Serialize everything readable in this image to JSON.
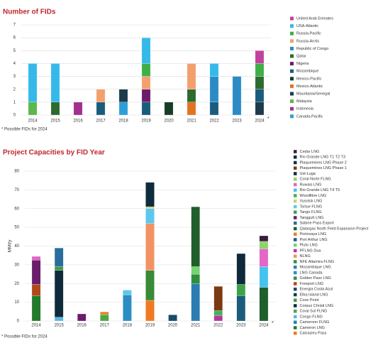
{
  "chart_data": [
    {
      "type": "stacked-bar",
      "title": "Number of FIDs",
      "note": "* Possible FIDs for 2024",
      "note_marker": "*",
      "categories": [
        "2014",
        "2015",
        "2016",
        "2017",
        "2018",
        "2019",
        "2020",
        "2021",
        "2022",
        "2023",
        "2024"
      ],
      "ylim": [
        0,
        7
      ],
      "yticks": [
        0,
        1,
        2,
        3,
        4,
        5,
        6,
        7
      ],
      "grid": true,
      "series": [
        {
          "name": "United Arab Emirates",
          "color": "#c2409e",
          "values": [
            0,
            0,
            0,
            0,
            0,
            0,
            0,
            0,
            0,
            0,
            1
          ]
        },
        {
          "name": "USA-Atlantic",
          "color": "#35b9e9",
          "values": [
            3,
            3,
            0,
            0,
            0,
            2,
            0,
            0,
            1,
            0,
            0
          ]
        },
        {
          "name": "Russia-Pacific",
          "color": "#3fae49",
          "values": [
            0,
            0,
            0,
            0,
            0,
            1,
            0,
            0,
            0,
            0,
            1
          ]
        },
        {
          "name": "Russia-Arctic",
          "color": "#f3a06e",
          "values": [
            0,
            0,
            0,
            1,
            0,
            1,
            0,
            2,
            0,
            0,
            0
          ]
        },
        {
          "name": "Republic of Congo",
          "color": "#2b8cc4",
          "values": [
            0,
            0,
            0,
            0,
            0,
            0,
            0,
            0,
            2,
            3,
            0
          ]
        },
        {
          "name": "Qatar",
          "color": "#2d6a2f",
          "values": [
            0,
            1,
            0,
            0,
            0,
            0,
            0,
            1,
            0,
            0,
            1
          ]
        },
        {
          "name": "Nigeria",
          "color": "#6b1c6b",
          "values": [
            0,
            0,
            0,
            0,
            0,
            1,
            0,
            0,
            0,
            0,
            0
          ]
        },
        {
          "name": "Mozambique",
          "color": "#1a5c7c",
          "values": [
            0,
            0,
            0,
            1,
            0,
            1,
            0,
            0,
            1,
            0,
            1
          ]
        },
        {
          "name": "Mexico-Pacific",
          "color": "#173d24",
          "values": [
            0,
            0,
            0,
            0,
            0,
            0,
            1,
            0,
            0,
            0,
            0
          ]
        },
        {
          "name": "Mexico-Atlantic",
          "color": "#e2741f",
          "values": [
            0,
            0,
            0,
            0,
            0,
            0,
            0,
            1,
            0,
            0,
            0
          ]
        },
        {
          "name": "Mauritania/Senegal",
          "color": "#1c3a4c",
          "values": [
            0,
            0,
            0,
            0,
            1,
            0,
            0,
            0,
            0,
            0,
            1
          ]
        },
        {
          "name": "Malaysia",
          "color": "#5cb84a",
          "values": [
            1,
            0,
            0,
            0,
            0,
            0,
            0,
            0,
            0,
            0,
            0
          ]
        },
        {
          "name": "Indonesia",
          "color": "#a2308f",
          "values": [
            0,
            0,
            1,
            0,
            0,
            0,
            0,
            0,
            0,
            0,
            0
          ]
        },
        {
          "name": "Canada-Pacific",
          "color": "#2e9fd6",
          "values": [
            0,
            0,
            0,
            0,
            1,
            0,
            0,
            0,
            0,
            0,
            0
          ]
        }
      ]
    },
    {
      "type": "stacked-bar",
      "title": "Project Capacities by FID Year",
      "note": "* Possible FIDs for 2024",
      "note_marker": "*",
      "y_label": "MMt/y",
      "categories": [
        "2014",
        "2015",
        "2016",
        "2017",
        "2018",
        "2019",
        "2020",
        "2021",
        "2022",
        "2023",
        "2024"
      ],
      "ylim": [
        0,
        80
      ],
      "yticks": [
        0,
        10,
        20,
        30,
        40,
        50,
        60,
        70,
        80
      ],
      "grid": true,
      "series": [
        {
          "name": "Cedar LNG",
          "color": "#3b1a3b",
          "values": [
            0,
            0,
            0,
            0,
            0,
            0,
            0,
            0,
            0,
            0,
            3
          ]
        },
        {
          "name": "Rio Grande LNG T1 T2 T3",
          "color": "#10293a",
          "values": [
            0,
            0,
            0,
            0,
            0,
            0,
            0,
            0,
            0,
            16.5,
            0
          ]
        },
        {
          "name": "Plaquemines LNG Phase 2",
          "color": "#1d2f3a",
          "values": [
            0,
            0,
            0,
            0,
            0,
            0,
            0,
            0,
            0,
            0,
            0
          ]
        },
        {
          "name": "Plaquemines LNG Phase 1",
          "color": "#7a3a12",
          "values": [
            0,
            0,
            0,
            0,
            0,
            0,
            0,
            0,
            13,
            0,
            0
          ]
        },
        {
          "name": "Ust-Luga",
          "color": "#0f2c3e",
          "values": [
            0,
            0,
            0,
            0,
            0,
            13,
            0,
            0,
            0,
            0,
            0
          ]
        },
        {
          "name": "Coral Norte FLNG",
          "color": "#8fd36c",
          "values": [
            0,
            0,
            0,
            0,
            0,
            0,
            0,
            0,
            0,
            0,
            4
          ]
        },
        {
          "name": "Ruwais LNG",
          "color": "#e466c6",
          "values": [
            2,
            0,
            0,
            0,
            0,
            0,
            0,
            0,
            0,
            0,
            9.5
          ]
        },
        {
          "name": "Rio Grande LNG T4 T5",
          "color": "#45c3f0",
          "values": [
            0,
            0,
            0,
            0,
            0,
            0,
            0,
            0,
            0,
            0,
            11
          ]
        },
        {
          "name": "Woodfibre LNG",
          "color": "#40b455",
          "values": [
            0,
            0,
            0,
            0,
            0,
            0,
            0,
            0,
            2.5,
            0,
            0
          ]
        },
        {
          "name": "Vysotsk LNG",
          "color": "#cfd36a",
          "values": [
            0,
            0,
            0,
            0,
            0,
            1,
            0,
            0,
            0,
            0,
            0
          ]
        },
        {
          "name": "Tortue FLNG",
          "color": "#5fc7ef",
          "values": [
            0,
            0,
            0,
            0,
            2.5,
            8,
            0,
            0,
            0,
            0,
            0
          ]
        },
        {
          "name": "Tango FLNG",
          "color": "#3da445",
          "values": [
            0,
            0,
            0,
            0,
            0,
            0,
            0,
            0,
            0,
            6,
            0
          ]
        },
        {
          "name": "Tangguh LNG",
          "color": "#6b1c6b",
          "values": [
            13,
            0,
            3.8,
            0,
            0,
            0,
            0,
            0,
            0,
            0,
            0
          ]
        },
        {
          "name": "Sabine Pass Export",
          "color": "#2a6d9c",
          "values": [
            0,
            10,
            0,
            0,
            0,
            0,
            0,
            0,
            0,
            0,
            0
          ]
        },
        {
          "name": "Qatargas North Field Expansion Project",
          "color": "#205e2c",
          "values": [
            0,
            0,
            0,
            0,
            0,
            0,
            0,
            32,
            0,
            0,
            18
          ]
        },
        {
          "name": "Portovaya LNG",
          "color": "#e5822f",
          "values": [
            0,
            0,
            0,
            1.5,
            0,
            0,
            0,
            0,
            0,
            0,
            0
          ]
        },
        {
          "name": "Port Arthur LNG",
          "color": "#1c5c7b",
          "values": [
            0,
            0,
            0,
            0,
            0,
            0,
            0,
            0,
            0,
            13.5,
            0
          ]
        },
        {
          "name": "Pluto LNG",
          "color": "#74d46e",
          "values": [
            0,
            0,
            0,
            0,
            0,
            0,
            0,
            4,
            0,
            0,
            0
          ]
        },
        {
          "name": "PFLNG Dua",
          "color": "#b2389f",
          "values": [
            0,
            0,
            0,
            0,
            0,
            0,
            0,
            0,
            3,
            0,
            0
          ]
        },
        {
          "name": "NLNG",
          "color": "#f29263",
          "values": [
            0,
            0,
            0,
            0,
            0,
            25,
            0,
            0,
            0,
            0,
            0
          ]
        },
        {
          "name": "NFE Altamira FLNG",
          "color": "#2f8f3d",
          "values": [
            0,
            0,
            0,
            0,
            0,
            0,
            0,
            5,
            0,
            0,
            0
          ]
        },
        {
          "name": "Mozambique LNG",
          "color": "#2c7cb2",
          "values": [
            0,
            0,
            0,
            0,
            0,
            0,
            0,
            20,
            0,
            0,
            0
          ]
        },
        {
          "name": "LNG Canada",
          "color": "#2b8ec3",
          "values": [
            0,
            0,
            0,
            0,
            14,
            0,
            0,
            0,
            0,
            0,
            0
          ]
        },
        {
          "name": "Golden Pass LNG",
          "color": "#3a8a38",
          "values": [
            0,
            0,
            0,
            0,
            0,
            16,
            0,
            0,
            0,
            0,
            0
          ]
        },
        {
          "name": "Freeport LNG",
          "color": "#b04a18",
          "values": [
            6,
            0,
            0,
            0,
            0,
            0,
            0,
            0,
            0,
            0,
            0
          ]
        },
        {
          "name": "Energia Costa Azul",
          "color": "#1b4b6b",
          "values": [
            0,
            0,
            0,
            0,
            0,
            0,
            3.3,
            0,
            0,
            0,
            0
          ]
        },
        {
          "name": "Elba Island LNG",
          "color": "#143a52",
          "values": [
            0,
            0,
            0,
            0,
            0,
            0,
            0,
            0,
            0,
            0,
            0
          ]
        },
        {
          "name": "Cove Point",
          "color": "#3d9b43",
          "values": [
            0,
            2,
            0,
            0,
            0,
            0,
            0,
            0,
            0,
            0,
            0
          ]
        },
        {
          "name": "Corpus Christi LNG",
          "color": "#0f2b3b",
          "values": [
            0,
            25,
            0,
            0,
            0,
            0,
            0,
            0,
            0,
            0,
            0
          ]
        },
        {
          "name": "Coral Sul FLNG",
          "color": "#4aa93f",
          "values": [
            0,
            0,
            0,
            3.4,
            0,
            0,
            0,
            0,
            0,
            0,
            0
          ]
        },
        {
          "name": "Congo FLNG",
          "color": "#55b8e6",
          "values": [
            0,
            2,
            0,
            0,
            0,
            0,
            0,
            0,
            0,
            0,
            0
          ]
        },
        {
          "name": "Cameroon FLNG",
          "color": "#2a7fa8",
          "values": [
            0,
            0,
            0,
            0,
            0,
            0,
            0,
            0,
            0,
            0,
            0
          ]
        },
        {
          "name": "Cameron LNG",
          "color": "#237a2c",
          "values": [
            13.5,
            0,
            0,
            0,
            0,
            0,
            0,
            0,
            0,
            0,
            0
          ]
        },
        {
          "name": "Calcasieu Pass",
          "color": "#ee7a22",
          "values": [
            0,
            0,
            0,
            0,
            0,
            11,
            0,
            0,
            0,
            0,
            0
          ]
        }
      ]
    }
  ]
}
